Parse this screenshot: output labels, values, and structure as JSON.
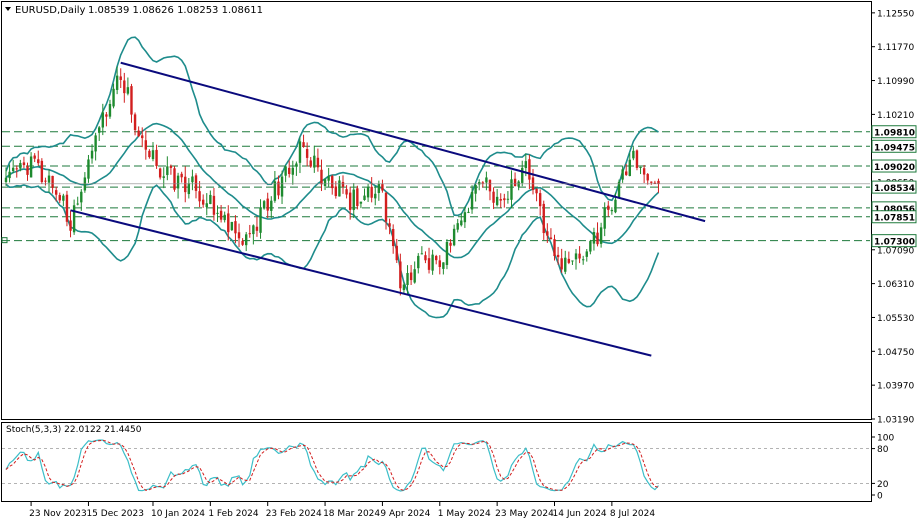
{
  "header": {
    "symbol_label": "EURUSD,Daily",
    "ohlc_label": "1.08539 1.08626 1.08253 1.08611",
    "menu_icon": "triangle-down-icon"
  },
  "stoch_header": {
    "label": "Stoch(5,3,3) 22.0122 21.4450"
  },
  "colors": {
    "bull": "#1e8a2e",
    "bear": "#d21e1e",
    "bands": "#1e8c8c",
    "channel": "#0a0a7d",
    "hlines": "#1e7a3c",
    "stoch_main": "#3cbec8",
    "stoch_signal": "#d21e1e",
    "axis": "#000000",
    "tag_bg": "#ffffff"
  },
  "chart_data": [
    {
      "type": "candlestick",
      "title": "EURUSD,Daily",
      "ylim": [
        1.0319,
        1.128
      ],
      "y_ticks": [
        "1.12550",
        "1.11770",
        "1.10990",
        "1.10210",
        "1.09430",
        "1.08650",
        "1.07870",
        "1.07090",
        "1.06310",
        "1.05530",
        "1.04750",
        "1.03970",
        "1.03190"
      ],
      "x_ticks": [
        "23 Nov 2023",
        "15 Dec 2023",
        "10 Jan 2024",
        "1 Feb 2024",
        "23 Feb 2024",
        "18 Mar 2024",
        "9 Apr 2024",
        "1 May 2024",
        "23 May 2024",
        "14 Jun 2024",
        "8 Jul 2024"
      ],
      "horizontal_levels": [
        {
          "label": "1.09810",
          "value": 1.0981,
          "filled": true
        },
        {
          "label": "1.09475",
          "value": 1.09475,
          "filled": true
        },
        {
          "label": "1.09020",
          "value": 1.0902,
          "filled": true
        },
        {
          "label": "1.08534",
          "value": 1.08534,
          "filled": true
        },
        {
          "label": "1.08056",
          "value": 1.08056,
          "filled": true
        },
        {
          "label": "1.07851",
          "value": 1.07851,
          "filled": true
        },
        {
          "label": "1.07300",
          "value": 1.073,
          "filled": true
        }
      ],
      "current_price": {
        "label": "1.08611",
        "value": 1.08611
      },
      "anchors": [
        {
          "date": "2023-11-14",
          "price": 1.088
        },
        {
          "date": "2023-11-23",
          "price": 1.091
        },
        {
          "date": "2023-12-04",
          "price": 1.085
        },
        {
          "date": "2023-12-08",
          "price": 1.077
        },
        {
          "date": "2023-12-15",
          "price": 1.092
        },
        {
          "date": "2023-12-28",
          "price": 1.112
        },
        {
          "date": "2024-01-05",
          "price": 1.094
        },
        {
          "date": "2024-01-16",
          "price": 1.088
        },
        {
          "date": "2024-01-26",
          "price": 1.085
        },
        {
          "date": "2024-02-14",
          "price": 1.072
        },
        {
          "date": "2024-02-23",
          "price": 1.082
        },
        {
          "date": "2024-03-08",
          "price": 1.094
        },
        {
          "date": "2024-03-19",
          "price": 1.086
        },
        {
          "date": "2024-03-27",
          "price": 1.082
        },
        {
          "date": "2024-04-09",
          "price": 1.085
        },
        {
          "date": "2024-04-16",
          "price": 1.062
        },
        {
          "date": "2024-04-23",
          "price": 1.069
        },
        {
          "date": "2024-05-01",
          "price": 1.067
        },
        {
          "date": "2024-05-16",
          "price": 1.088
        },
        {
          "date": "2024-05-23",
          "price": 1.082
        },
        {
          "date": "2024-06-04",
          "price": 1.09
        },
        {
          "date": "2024-06-14",
          "price": 1.069
        },
        {
          "date": "2024-06-26",
          "price": 1.068
        },
        {
          "date": "2024-07-16",
          "price": 1.093
        },
        {
          "date": "2024-07-22",
          "price": 1.087
        },
        {
          "date": "2024-07-25",
          "price": 1.0855
        }
      ],
      "channel_lines": [
        {
          "name": "upper",
          "from": {
            "date": "2023-12-28",
            "price": 1.114
          },
          "to": {
            "date": "2024-08-12",
            "price": 1.0775
          }
        },
        {
          "name": "lower",
          "from": {
            "date": "2023-12-08",
            "price": 1.08
          },
          "to": {
            "date": "2024-07-23",
            "price": 1.0465
          }
        }
      ],
      "indicators": [
        "bollinger-bands"
      ]
    },
    {
      "type": "line",
      "title": "Stoch(5,3,3) 22.0122 21.4450",
      "ylim": [
        0,
        100
      ],
      "y_ticks": [
        "100",
        "80",
        "20",
        "0"
      ],
      "levels": [
        80,
        20
      ],
      "series": [
        {
          "values_from": "price-series",
          "style": "solid"
        },
        {
          "values_from": "price-series",
          "style": "dashed"
        }
      ]
    }
  ]
}
